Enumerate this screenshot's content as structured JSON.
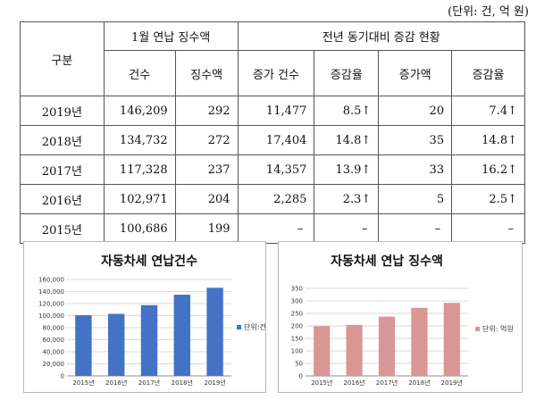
{
  "unit_note": "(단위: 건, 억 원)",
  "table": {
    "header_category": "구분",
    "group_1": "1월 연납 징수액",
    "group_2": "전년 동기대비 증감 현황",
    "columns": [
      "건수",
      "징수액",
      "증가 건수",
      "증감율",
      "증가액",
      "증감율"
    ],
    "rows": [
      {
        "year": "2019년",
        "count": "146,209",
        "amount": "292",
        "inc_count": "11,477",
        "rate1": "8.5↑",
        "inc_amount": "20",
        "rate2": "7.4↑"
      },
      {
        "year": "2018년",
        "count": "134,732",
        "amount": "272",
        "inc_count": "17,404",
        "rate1": "14.8↑",
        "inc_amount": "35",
        "rate2": "14.8↑"
      },
      {
        "year": "2017년",
        "count": "117,328",
        "amount": "237",
        "inc_count": "14,357",
        "rate1": "13.9↑",
        "inc_amount": "33",
        "rate2": "16.2↑"
      },
      {
        "year": "2016년",
        "count": "102,971",
        "amount": "204",
        "inc_count": "2,285",
        "rate1": "2.3↑",
        "inc_amount": "5",
        "rate2": "2.5↑"
      },
      {
        "year": "2015년",
        "count": "100,686",
        "amount": "199",
        "inc_count": "–",
        "rate1": "–",
        "inc_amount": "–",
        "rate2": "–"
      }
    ]
  },
  "chart_data": [
    {
      "type": "bar",
      "title": "자동차세 연납건수",
      "categories": [
        "2015년",
        "2016년",
        "2017년",
        "2018년",
        "2019년"
      ],
      "series": [
        {
          "name": "단위:건",
          "values": [
            100686,
            102971,
            117328,
            134732,
            146209
          ]
        }
      ],
      "ylim": [
        0,
        160000
      ],
      "yticks": [
        0,
        20000,
        40000,
        60000,
        80000,
        100000,
        120000,
        140000,
        160000
      ],
      "ytick_labels": [
        "0",
        "20,000",
        "40,000",
        "60,000",
        "80,000",
        "100,000",
        "120,000",
        "140,000",
        "160,000"
      ],
      "grid": true,
      "legend": "right",
      "color": "#4472c4"
    },
    {
      "type": "bar",
      "title": "자동차세 연납 징수액",
      "categories": [
        "2015년",
        "2016년",
        "2017년",
        "2018년",
        "2019년"
      ],
      "series": [
        {
          "name": "단위: 억원",
          "values": [
            199,
            204,
            237,
            272,
            292
          ]
        }
      ],
      "ylim": [
        0,
        350
      ],
      "yticks": [
        0,
        50,
        100,
        150,
        200,
        250,
        300,
        350
      ],
      "ytick_labels": [
        "0",
        "50",
        "100",
        "150",
        "200",
        "250",
        "300",
        "350"
      ],
      "grid": true,
      "legend": "right",
      "color": "#d99694"
    }
  ]
}
